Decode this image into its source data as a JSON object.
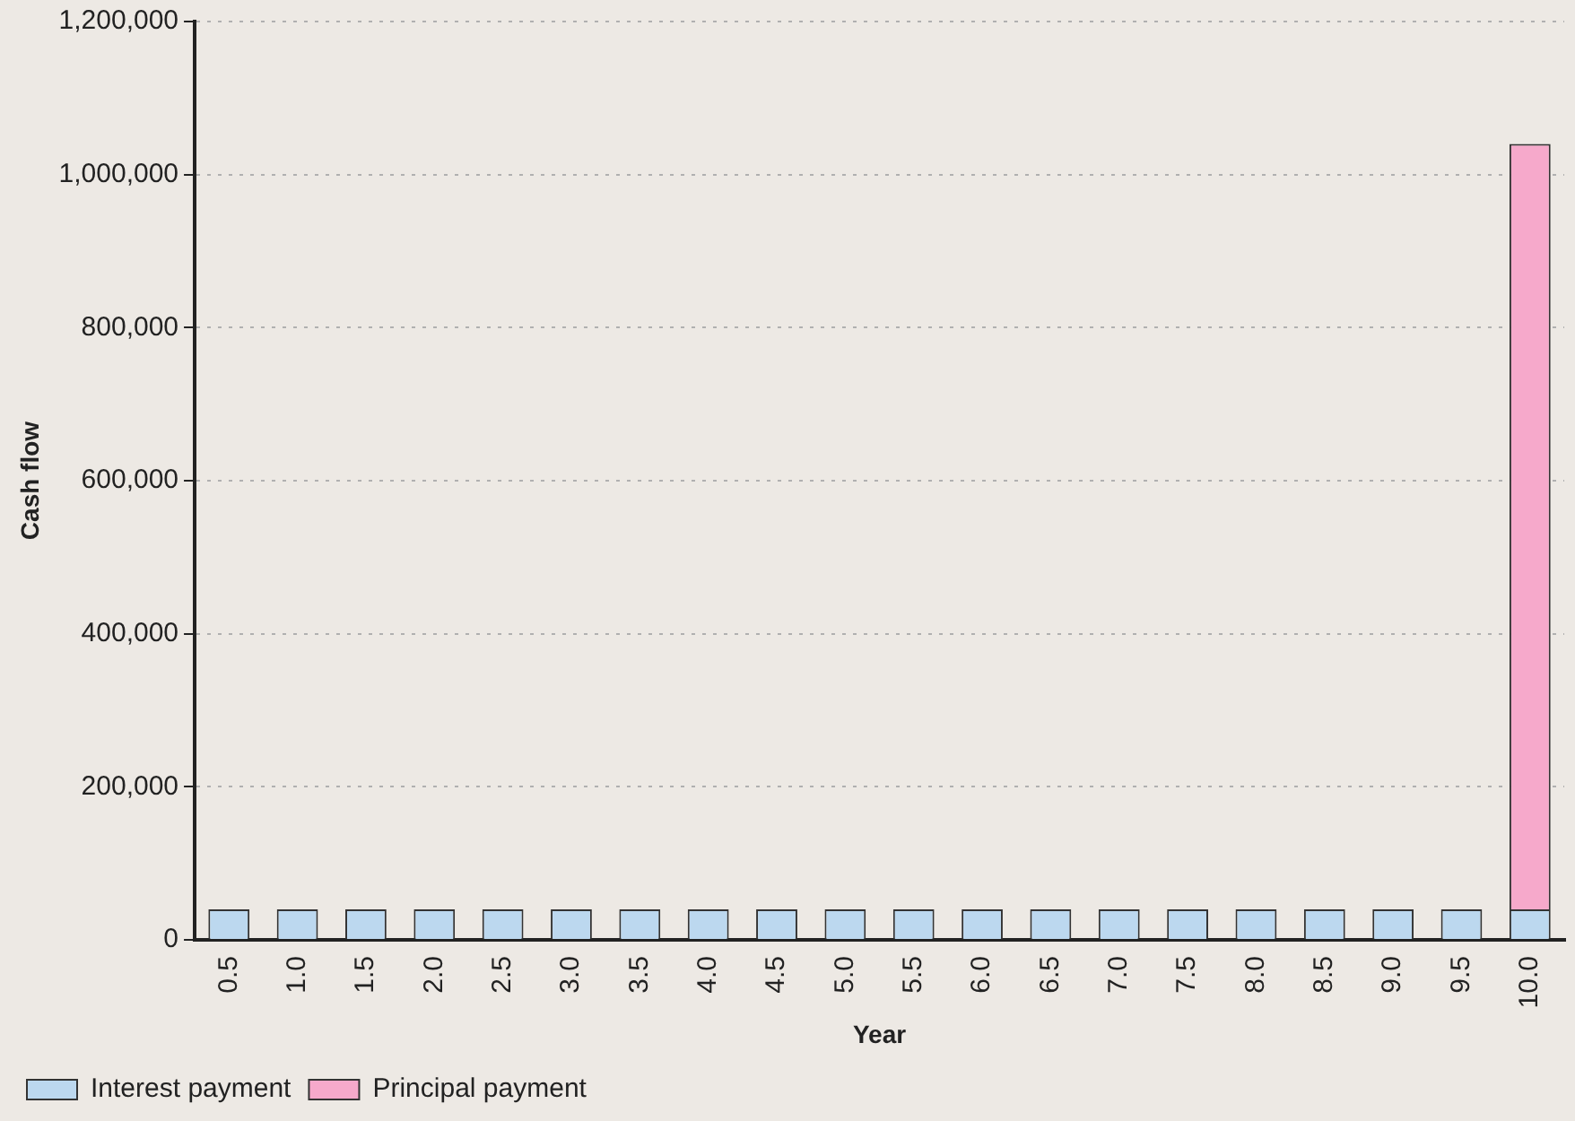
{
  "chart_data": {
    "type": "bar",
    "stacked": true,
    "xlabel": "Year",
    "ylabel": "Cash flow",
    "categories": [
      "0.5",
      "1.0",
      "1.5",
      "2.0",
      "2.5",
      "3.0",
      "3.5",
      "4.0",
      "4.5",
      "5.0",
      "5.5",
      "6.0",
      "6.5",
      "7.0",
      "7.5",
      "8.0",
      "8.5",
      "9.0",
      "9.5",
      "10.0"
    ],
    "series": [
      {
        "name": "Interest payment",
        "color": "#bcd8ef",
        "values": [
          40000,
          40000,
          40000,
          40000,
          40000,
          40000,
          40000,
          40000,
          40000,
          40000,
          40000,
          40000,
          40000,
          40000,
          40000,
          40000,
          40000,
          40000,
          40000,
          40000
        ]
      },
      {
        "name": "Principal payment",
        "color": "#f6a9cb",
        "values": [
          null,
          null,
          null,
          null,
          null,
          null,
          null,
          null,
          null,
          null,
          null,
          null,
          null,
          null,
          null,
          null,
          null,
          null,
          null,
          1000000
        ]
      }
    ],
    "ylim": [
      0,
      1200000
    ],
    "yticks": [
      {
        "value": 0,
        "label": "0"
      },
      {
        "value": 200000,
        "label": "200,000"
      },
      {
        "value": 400000,
        "label": "400,000"
      },
      {
        "value": 600000,
        "label": "600,000"
      },
      {
        "value": 800000,
        "label": "800,000"
      },
      {
        "value": 1000000,
        "label": "1,000,000"
      },
      {
        "value": 1200000,
        "label": "1,200,000"
      }
    ],
    "grid": "y",
    "legend": "bottom left"
  }
}
